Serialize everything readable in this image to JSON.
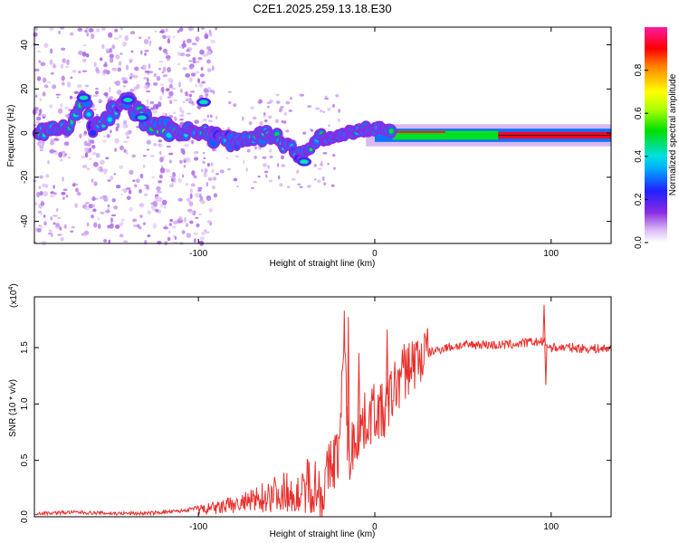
{
  "title": "C2E1.2025.259.13.18.E30",
  "chart_data": [
    {
      "type": "heatmap",
      "name": "spectrogram",
      "xlabel": "Height of straight line (km)",
      "ylabel": "Frequency (Hz)",
      "xlim": [
        -193,
        134
      ],
      "ylim": [
        -50,
        48
      ],
      "xticks": [
        -100,
        0,
        100
      ],
      "yticks": [
        -40,
        -20,
        0,
        20,
        40
      ],
      "colorbar": {
        "label": "Normalized spectral amplitude",
        "range": [
          0,
          1
        ],
        "ticks": [
          "0.0",
          "0.2",
          "0.4",
          "0.6",
          "0.8"
        ],
        "tick_values": [
          0.0,
          0.2,
          0.4,
          0.6,
          0.8
        ]
      },
      "signal_track": [
        {
          "x": -190,
          "f": 2,
          "a": 0.55
        },
        {
          "x": -175,
          "f": 1,
          "a": 0.6
        },
        {
          "x": -165,
          "f": 16,
          "a": 0.45
        },
        {
          "x": -160,
          "f": 2,
          "a": 0.4
        },
        {
          "x": -140,
          "f": 15,
          "a": 0.45
        },
        {
          "x": -132,
          "f": 7,
          "a": 0.5
        },
        {
          "x": -120,
          "f": 2,
          "a": 0.55
        },
        {
          "x": -100,
          "f": 1,
          "a": 0.5
        },
        {
          "x": -90,
          "f": -2,
          "a": 0.45
        },
        {
          "x": -75,
          "f": -3,
          "a": 0.45
        },
        {
          "x": -60,
          "f": 0,
          "a": 0.55
        },
        {
          "x": -50,
          "f": -7,
          "a": 0.45
        },
        {
          "x": -40,
          "f": -10,
          "a": 0.4
        },
        {
          "x": -35,
          "f": -4,
          "a": 0.55
        },
        {
          "x": -20,
          "f": -1,
          "a": 0.7
        },
        {
          "x": -10,
          "f": 1,
          "a": 0.8
        },
        {
          "x": 0,
          "f": 2,
          "a": 0.95
        },
        {
          "x": 10,
          "f": 1,
          "a": 0.9
        },
        {
          "x": 30,
          "f": 0,
          "a": 0.7
        },
        {
          "x": 60,
          "f": -1,
          "a": 0.55
        },
        {
          "x": 90,
          "f": -1,
          "a": 0.5
        },
        {
          "x": 134,
          "f": -1,
          "a": 0.45
        }
      ]
    },
    {
      "type": "line",
      "name": "snr",
      "xlabel": "Height of straight line (km)",
      "ylabel": "SNR (10 * v/v)",
      "yscale_label": "(x10",
      "yscale_exp": "4",
      "y_multiplier": 10000,
      "xlim": [
        -193,
        134
      ],
      "ylim": [
        0,
        1.95
      ],
      "xticks": [
        -100,
        0,
        100
      ],
      "yticks": [
        0.0,
        0.5,
        1.0,
        1.5
      ],
      "ytick_labels": [
        "0.0",
        "0.5",
        "1.0",
        "1.5"
      ],
      "color": "#e8302c",
      "series": [
        {
          "name": "SNR",
          "x": [
            -193,
            -170,
            -150,
            -130,
            -120,
            -110,
            -100,
            -90,
            -80,
            -70,
            -60,
            -50,
            -45,
            -40,
            -35,
            -30,
            -25,
            -20,
            -17,
            -15,
            -10,
            -5,
            0,
            5,
            10,
            15,
            20,
            25,
            30,
            40,
            50,
            60,
            70,
            80,
            90,
            95,
            100,
            110,
            120,
            134
          ],
          "y": [
            0.03,
            0.04,
            0.03,
            0.03,
            0.04,
            0.05,
            0.08,
            0.1,
            0.14,
            0.18,
            0.26,
            0.3,
            0.25,
            0.3,
            0.3,
            0.2,
            0.45,
            0.6,
            1.7,
            0.5,
            0.75,
            0.85,
            0.95,
            0.9,
            1.1,
            1.25,
            1.35,
            1.4,
            1.45,
            1.5,
            1.52,
            1.53,
            1.52,
            1.53,
            1.55,
            1.55,
            1.5,
            1.5,
            1.49,
            1.49
          ]
        }
      ],
      "spikes": [
        {
          "x": -15,
          "y": 1.77
        },
        {
          "x": -9,
          "y": 1.45
        },
        {
          "x": 7,
          "y": 1.66
        },
        {
          "x": 96,
          "y": 1.88
        },
        {
          "x": 97,
          "y": 1.17
        }
      ]
    }
  ]
}
